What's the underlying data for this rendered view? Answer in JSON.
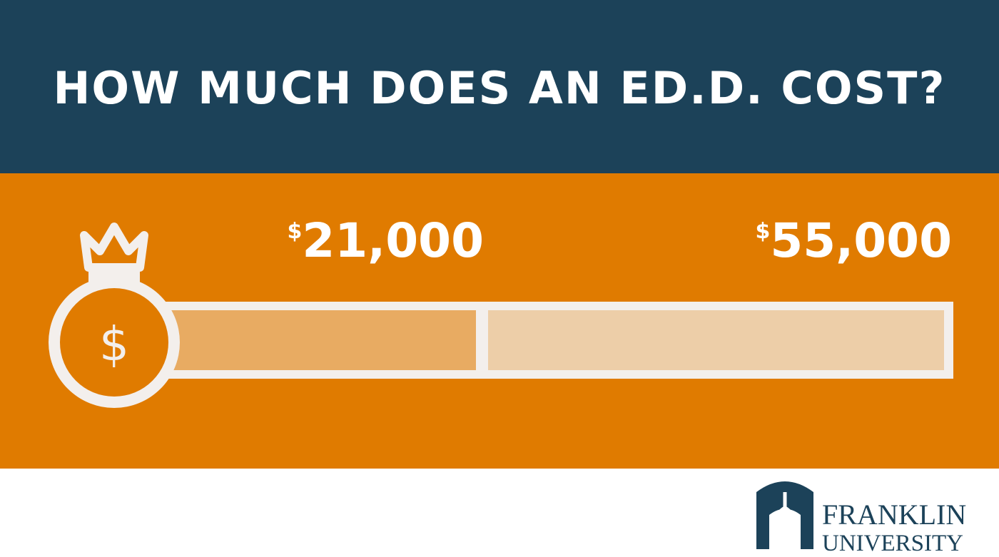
{
  "header": {
    "title": "HOW MUCH DOES AN ED.D. COST?"
  },
  "markers": [
    {
      "currency": "$",
      "amount": "21,000"
    },
    {
      "currency": "$",
      "amount": "55,000"
    }
  ],
  "logo": {
    "line1": "FRANKLIN",
    "line2": "UNIVERSITY"
  }
}
